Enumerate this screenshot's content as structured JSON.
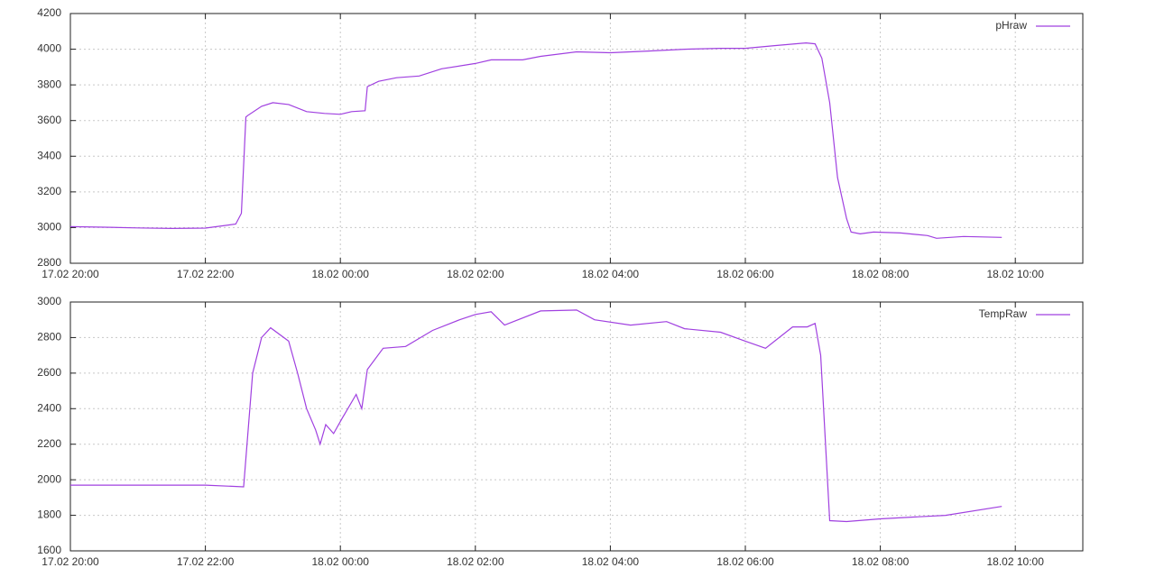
{
  "chart_data": [
    {
      "type": "line",
      "x": [
        "17.02 20:00",
        "17.02 20:30",
        "17.02 21:00",
        "17.02 21:30",
        "17.02 22:00",
        "17.02 22:27",
        "17.02 22:32",
        "17.02 22:36",
        "17.02 22:38",
        "17.02 22:50",
        "17.02 23:00",
        "17.02 23:14",
        "17.02 23:30",
        "17.02 23:46",
        "18.02 00:00",
        "18.02 00:10",
        "18.02 00:22",
        "18.02 00:24",
        "18.02 00:34",
        "18.02 00:50",
        "18.02 01:10",
        "18.02 01:30",
        "18.02 02:00",
        "18.02 02:14",
        "18.02 02:42",
        "18.02 02:58",
        "18.02 03:30",
        "18.02 04:00",
        "18.02 04:34",
        "18.02 05:06",
        "18.02 05:38",
        "18.02 06:00",
        "18.02 06:26",
        "18.02 06:54",
        "18.02 07:02",
        "18.02 07:08",
        "18.02 07:15",
        "18.02 07:22",
        "18.02 07:30",
        "18.02 07:34",
        "18.02 07:42",
        "18.02 07:54",
        "18.02 08:18",
        "18.02 08:42",
        "18.02 08:50",
        "18.02 09:14",
        "18.02 09:48"
      ],
      "series": [
        {
          "name": "pHraw",
          "color": "#a040e0",
          "values": [
            3005,
            3002,
            2998,
            2995,
            2997,
            3020,
            3080,
            3620,
            3630,
            3680,
            3700,
            3690,
            3650,
            3640,
            3635,
            3650,
            3655,
            3790,
            3820,
            3840,
            3850,
            3890,
            3920,
            3940,
            3940,
            3960,
            3985,
            3980,
            3990,
            4000,
            4005,
            4005,
            4020,
            4035,
            4030,
            3950,
            3700,
            3280,
            3050,
            2975,
            2965,
            2975,
            2970,
            2955,
            2940,
            2950,
            2945
          ]
        }
      ],
      "xlim": [
        "17.02 20:00",
        "18.02 11:00"
      ],
      "xticks": [
        "17.02 20:00",
        "17.02 22:00",
        "18.02 00:00",
        "18.02 02:00",
        "18.02 04:00",
        "18.02 06:00",
        "18.02 08:00",
        "18.02 10:00"
      ],
      "ylim": [
        2800,
        4200
      ],
      "yticks": [
        2800,
        3000,
        3200,
        3400,
        3600,
        3800,
        4000,
        4200
      ],
      "grid": true,
      "legend": "top-right"
    },
    {
      "type": "line",
      "x": [
        "17.02 20:00",
        "17.02 22:00",
        "17.02 22:34",
        "17.02 22:42",
        "17.02 22:50",
        "17.02 22:58",
        "17.02 23:14",
        "17.02 23:22",
        "17.02 23:30",
        "17.02 23:38",
        "17.02 23:42",
        "17.02 23:47",
        "17.02 23:54",
        "18.02 00:02",
        "18.02 00:14",
        "18.02 00:19",
        "18.02 00:24",
        "18.02 00:38",
        "18.02 00:58",
        "18.02 01:22",
        "18.02 01:46",
        "18.02 02:00",
        "18.02 02:14",
        "18.02 02:26",
        "18.02 02:58",
        "18.02 03:30",
        "18.02 03:46",
        "18.02 04:18",
        "18.02 04:50",
        "18.02 05:06",
        "18.02 05:38",
        "18.02 06:00",
        "18.02 06:18",
        "18.02 06:42",
        "18.02 06:55",
        "18.02 07:02",
        "18.02 07:07",
        "18.02 07:15",
        "18.02 07:30",
        "18.02 08:00",
        "18.02 08:58",
        "18.02 09:48"
      ],
      "series": [
        {
          "name": "TempRaw",
          "color": "#a040e0",
          "values": [
            1970,
            1970,
            1960,
            2600,
            2800,
            2855,
            2780,
            2600,
            2400,
            2280,
            2200,
            2310,
            2260,
            2350,
            2480,
            2400,
            2620,
            2740,
            2750,
            2840,
            2900,
            2930,
            2945,
            2870,
            2950,
            2955,
            2900,
            2870,
            2890,
            2850,
            2830,
            2780,
            2740,
            2860,
            2860,
            2880,
            2700,
            1770,
            1765,
            1780,
            1800,
            1850
          ]
        }
      ],
      "xlim": [
        "17.02 20:00",
        "18.02 11:00"
      ],
      "xticks": [
        "17.02 20:00",
        "17.02 22:00",
        "18.02 00:00",
        "18.02 02:00",
        "18.02 04:00",
        "18.02 06:00",
        "18.02 08:00",
        "18.02 10:00"
      ],
      "ylim": [
        1600,
        3000
      ],
      "yticks": [
        1600,
        1800,
        2000,
        2200,
        2400,
        2600,
        2800,
        3000
      ],
      "grid": true,
      "legend": "top-right"
    }
  ]
}
